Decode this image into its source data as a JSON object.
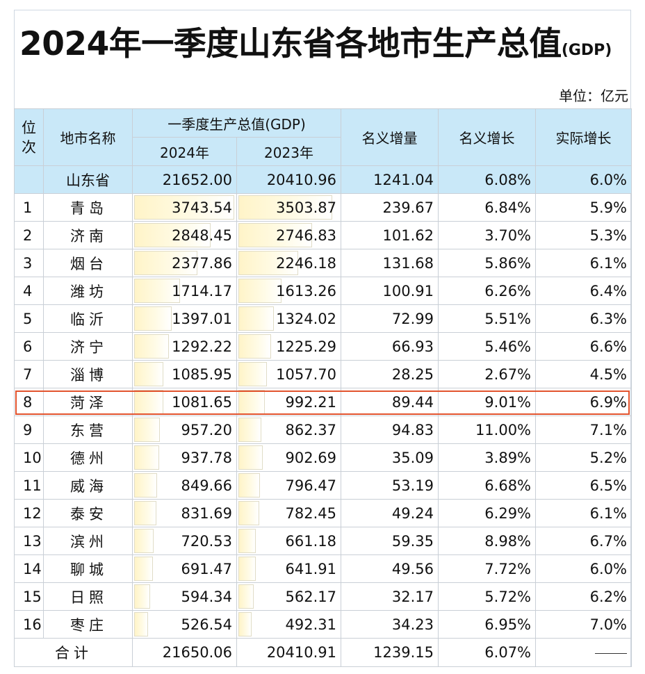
{
  "title": {
    "main": "2024年一季度山东省各地市生产总值",
    "suffix": "(GDP)"
  },
  "unit": "单位：亿元",
  "header": {
    "rank": "位次",
    "city": "地市名称",
    "gdp_group": "一季度生产总值(GDP)",
    "y2024": "2024年",
    "y2023": "2023年",
    "nominal_increase": "名义增量",
    "nominal_growth": "名义增长",
    "real_growth": "实际增长"
  },
  "province": {
    "name": "山东省",
    "gdp2024": "21652.00",
    "gdp2023": "20410.96",
    "nominal_increase": "1241.04",
    "nominal_growth": "6.08%",
    "real_growth": "6.0%"
  },
  "rows": [
    {
      "rank": "1",
      "city": "青岛",
      "gdp2024": "3743.54",
      "gdp2023": "3503.87",
      "inc": "239.67",
      "ng": "6.84%",
      "rg": "5.9%"
    },
    {
      "rank": "2",
      "city": "济南",
      "gdp2024": "2848.45",
      "gdp2023": "2746.83",
      "inc": "101.62",
      "ng": "3.70%",
      "rg": "5.3%"
    },
    {
      "rank": "3",
      "city": "烟台",
      "gdp2024": "2377.86",
      "gdp2023": "2246.18",
      "inc": "131.68",
      "ng": "5.86%",
      "rg": "6.1%"
    },
    {
      "rank": "4",
      "city": "潍坊",
      "gdp2024": "1714.17",
      "gdp2023": "1613.26",
      "inc": "100.91",
      "ng": "6.26%",
      "rg": "6.4%"
    },
    {
      "rank": "5",
      "city": "临沂",
      "gdp2024": "1397.01",
      "gdp2023": "1324.02",
      "inc": "72.99",
      "ng": "5.51%",
      "rg": "6.3%"
    },
    {
      "rank": "6",
      "city": "济宁",
      "gdp2024": "1292.22",
      "gdp2023": "1225.29",
      "inc": "66.93",
      "ng": "5.46%",
      "rg": "6.6%"
    },
    {
      "rank": "7",
      "city": "淄博",
      "gdp2024": "1085.95",
      "gdp2023": "1057.70",
      "inc": "28.25",
      "ng": "2.67%",
      "rg": "4.5%"
    },
    {
      "rank": "8",
      "city": "菏泽",
      "gdp2024": "1081.65",
      "gdp2023": "992.21",
      "inc": "89.44",
      "ng": "9.01%",
      "rg": "6.9%"
    },
    {
      "rank": "9",
      "city": "东营",
      "gdp2024": "957.20",
      "gdp2023": "862.37",
      "inc": "94.83",
      "ng": "11.00%",
      "rg": "7.1%"
    },
    {
      "rank": "10",
      "city": "德州",
      "gdp2024": "937.78",
      "gdp2023": "902.69",
      "inc": "35.09",
      "ng": "3.89%",
      "rg": "5.2%"
    },
    {
      "rank": "11",
      "city": "威海",
      "gdp2024": "849.66",
      "gdp2023": "796.47",
      "inc": "53.19",
      "ng": "6.68%",
      "rg": "6.5%"
    },
    {
      "rank": "12",
      "city": "泰安",
      "gdp2024": "831.69",
      "gdp2023": "782.45",
      "inc": "49.24",
      "ng": "6.29%",
      "rg": "6.1%"
    },
    {
      "rank": "13",
      "city": "滨州",
      "gdp2024": "720.53",
      "gdp2023": "661.18",
      "inc": "59.35",
      "ng": "8.98%",
      "rg": "6.7%"
    },
    {
      "rank": "14",
      "city": "聊城",
      "gdp2024": "691.47",
      "gdp2023": "641.91",
      "inc": "49.56",
      "ng": "7.72%",
      "rg": "6.0%"
    },
    {
      "rank": "15",
      "city": "日照",
      "gdp2024": "594.34",
      "gdp2023": "562.17",
      "inc": "32.17",
      "ng": "5.72%",
      "rg": "6.2%"
    },
    {
      "rank": "16",
      "city": "枣庄",
      "gdp2024": "526.54",
      "gdp2023": "492.31",
      "inc": "34.23",
      "ng": "6.95%",
      "rg": "7.0%"
    }
  ],
  "total": {
    "label": "合计",
    "gdp2024": "21650.06",
    "gdp2023": "20410.91",
    "inc": "1239.15",
    "ng": "6.07%"
  },
  "highlighted_rank": "8",
  "colors": {
    "header_bg": "#c9e8f8",
    "highlight_border": "#e2532d",
    "bar_fill": "#fff4c8"
  }
}
